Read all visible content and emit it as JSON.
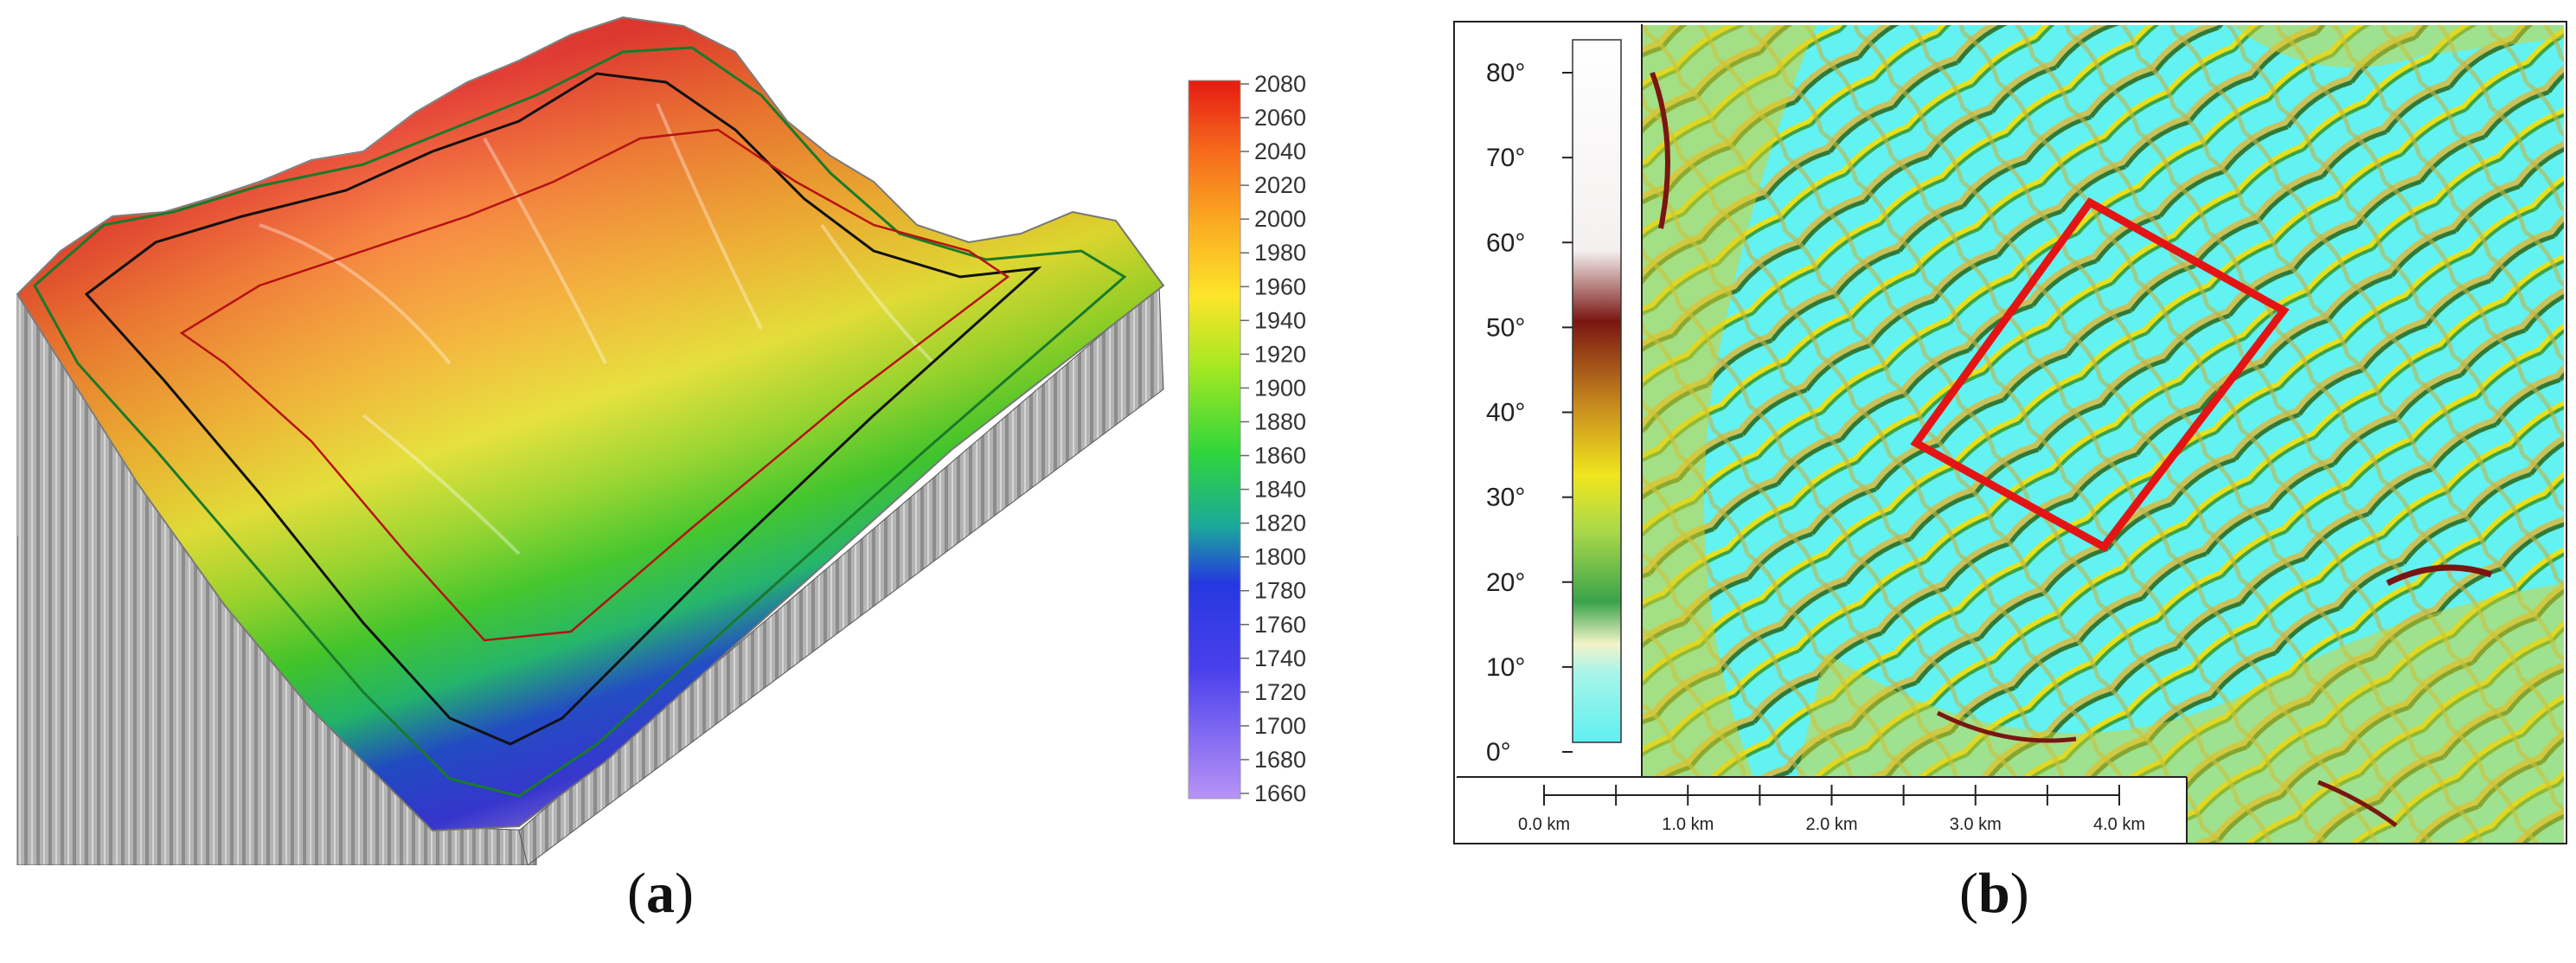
{
  "panel_a": {
    "caption_prefix": "(",
    "caption_letter": "a",
    "caption_suffix": ")",
    "colorbar": {
      "ticks": [
        "2080",
        "2060",
        "2040",
        "2020",
        "2000",
        "1980",
        "1960",
        "1940",
        "1920",
        "1900",
        "1880",
        "1860",
        "1840",
        "1820",
        "1800",
        "1780",
        "1760",
        "1740",
        "1720",
        "1700",
        "1680",
        "1660"
      ],
      "colors": [
        "#e51b12",
        "#f2461a",
        "#f66b1c",
        "#f98c1f",
        "#fbac22",
        "#fcc925",
        "#fde52a",
        "#eef02b",
        "#ccec26",
        "#a4e822",
        "#7be31f",
        "#4fde1c",
        "#2fd53c",
        "#1ec56f",
        "#1aa99a",
        "#1f6fc6",
        "#2538e0",
        "#3c3cec",
        "#5b4cf0",
        "#7a5ef2",
        "#9a76f4",
        "#b893f6"
      ]
    }
  },
  "panel_b": {
    "caption_prefix": "(",
    "caption_letter": "b",
    "caption_suffix": ")",
    "legend_ticks": [
      "80°",
      "70°",
      "60°",
      "50°",
      "40°",
      "30°",
      "20°",
      "10°",
      "0°"
    ],
    "scale_labels": [
      "0.0 km",
      "1.0 km",
      "2.0 km",
      "3.0 km",
      "4.0 km"
    ],
    "colors": {
      "cyan": "#63f2f2",
      "yellow": "#e8e01c",
      "green": "#3aa34a",
      "brown": "#7a1612",
      "outline": "#e51414"
    }
  }
}
